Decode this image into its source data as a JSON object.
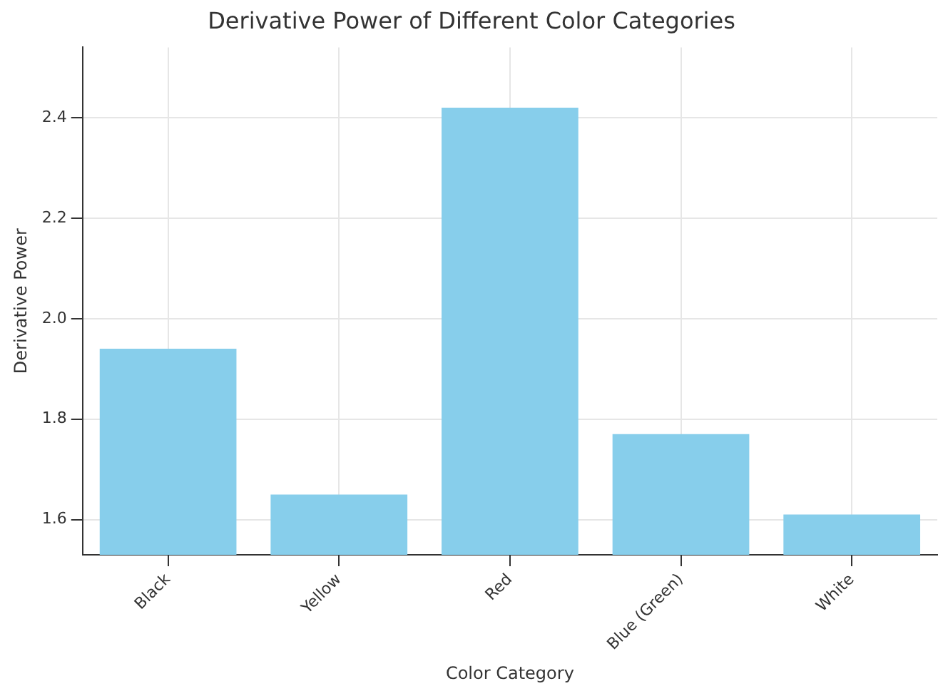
{
  "chart_data": {
    "type": "bar",
    "title": "Derivative Power of Different Color Categories",
    "xlabel": "Color Category",
    "ylabel": "Derivative Power",
    "categories": [
      "Black",
      "Yellow",
      "Red",
      "Blue (Green)",
      "White"
    ],
    "values": [
      1.94,
      1.65,
      2.42,
      1.77,
      1.61
    ],
    "color": "#87ceeb",
    "ylim": [
      1.53,
      2.54
    ],
    "yticks": [
      1.6,
      1.8,
      {
        "value": 2,
        "label": "2.0"
      },
      2.2,
      2.4
    ],
    "grid": true
  }
}
